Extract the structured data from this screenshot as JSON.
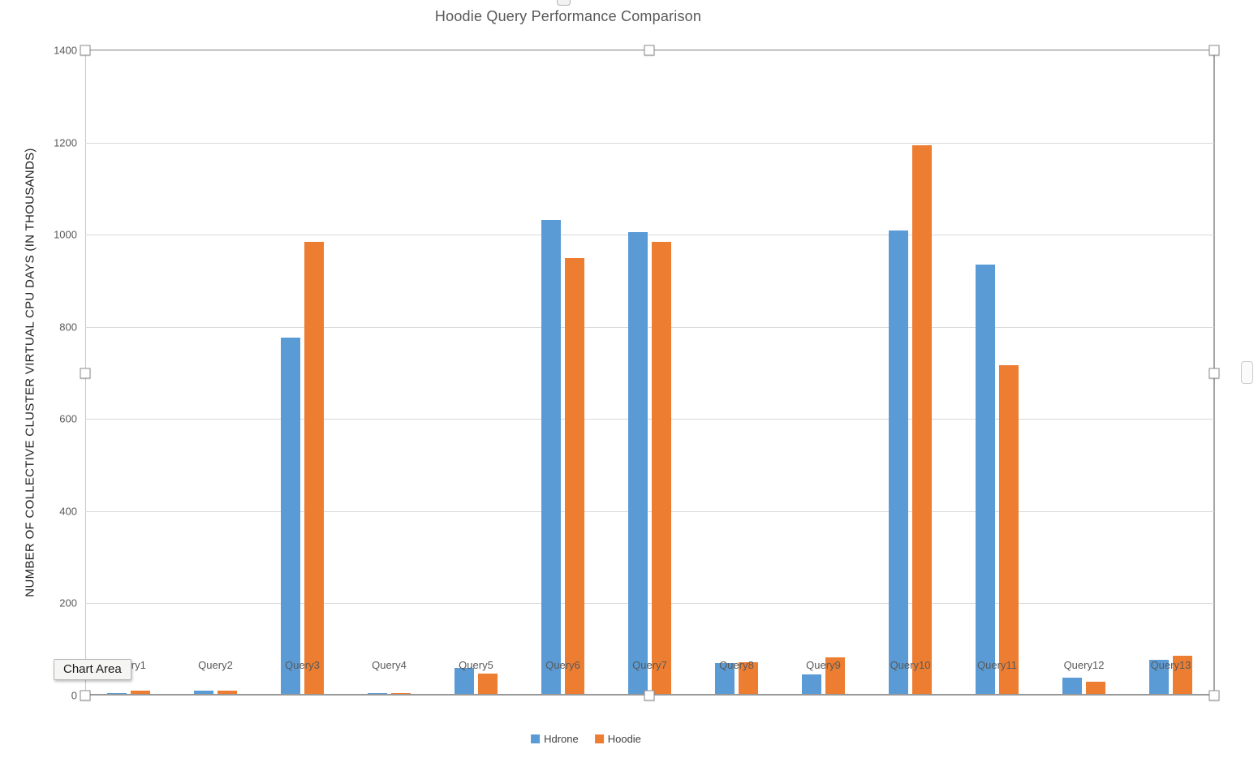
{
  "chart": {
    "title": "Hoodie Query Performance Comparison",
    "tooltip": "Chart Area"
  },
  "chart_data": {
    "type": "bar",
    "title": "Hoodie Query Performance Comparison",
    "categories": [
      "Query1",
      "Query2",
      "Query3",
      "Query4",
      "Query5",
      "Query6",
      "Query7",
      "Query8",
      "Query9",
      "Query10",
      "Query11",
      "Query12",
      "Query13"
    ],
    "series": [
      {
        "name": "Hdrone",
        "color": "#5b9bd5",
        "values": [
          4,
          9,
          775,
          3,
          58,
          1030,
          1004,
          68,
          44,
          1007,
          934,
          37,
          76
        ]
      },
      {
        "name": "Hoodie",
        "color": "#ed7d31",
        "values": [
          8,
          8,
          983,
          4,
          46,
          948,
          983,
          70,
          81,
          1193,
          715,
          29,
          84
        ]
      }
    ],
    "xlabel": "",
    "ylabel": "NUMBER OF COLLECTIVE CLUSTER VIRTUAL CPU DAYS (IN THOUSANDS)",
    "ylim": [
      0,
      1400
    ],
    "ytick_step": 200,
    "grid": true,
    "legend_position": "bottom"
  },
  "colors": {
    "series_hdrone": "#5b9bd5",
    "series_hoodie": "#ed7d31",
    "gridline": "#d9d9d9",
    "axis_text": "#595959",
    "title_text": "#595959",
    "selection_border": "#a3a3a3"
  }
}
